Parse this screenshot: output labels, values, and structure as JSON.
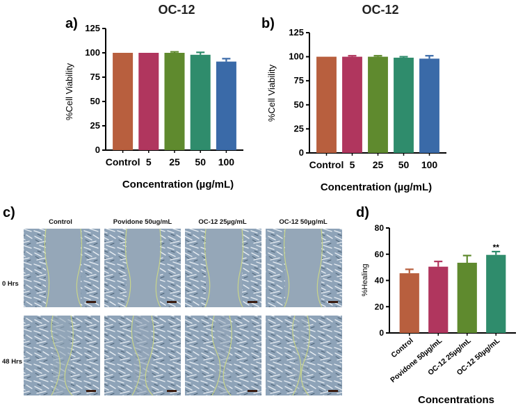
{
  "colors": {
    "control": "#b85f3e",
    "c5": "#b0365e",
    "c25": "#5f8a2e",
    "c50": "#2f8c6c",
    "c100": "#3a6aa8",
    "povidone": "#b0365e",
    "oc25": "#5f8a2e",
    "oc50": "#2f8c6c"
  },
  "panel_labels": [
    "a)",
    "b)",
    "c)",
    "d)"
  ],
  "images": {
    "column_headers": [
      "Control",
      "Povidone 50ug/mL",
      "OC-12 25µg/mL",
      "OC-12 50µg/mL"
    ],
    "row_labels": [
      "0 Hrs",
      "48 Hrs"
    ]
  },
  "chart_data": [
    {
      "id": "a",
      "type": "bar",
      "title": "OC-12",
      "categories": [
        "Control",
        "5",
        "25",
        "50",
        "100"
      ],
      "values": [
        100,
        100,
        100,
        98,
        91
      ],
      "errors": [
        0,
        0,
        1,
        2.5,
        3
      ],
      "ylabel": "%Cell Viability",
      "xlabel": "Concentration (µg/mL)",
      "ylim": [
        0,
        125
      ],
      "yticks": [
        "0",
        "25",
        "50",
        "75",
        "100",
        "125"
      ]
    },
    {
      "id": "b",
      "type": "bar",
      "title": "OC-12",
      "categories": [
        "Control",
        "5",
        "25",
        "50",
        "100"
      ],
      "values": [
        100,
        100,
        100,
        99,
        98
      ],
      "errors": [
        0,
        1,
        1,
        1,
        3
      ],
      "ylabel": "%Cell Viability",
      "xlabel": "Concentration (µg/mL)",
      "ylim": [
        0,
        125
      ],
      "yticks": [
        "0",
        "25",
        "50",
        "75",
        "100",
        "125"
      ]
    },
    {
      "id": "d",
      "type": "bar",
      "title": "",
      "categories": [
        "Control",
        "Povidone 50µg/mL",
        "OC-12 25µg/mL",
        "OC-12 50µg/mL"
      ],
      "values": [
        45.5,
        50.5,
        53.5,
        59.5
      ],
      "errors": [
        3,
        4,
        5.5,
        2.5
      ],
      "annotations": [
        "",
        "",
        "",
        "**"
      ],
      "ylabel": "%Healing",
      "xlabel": "Concentrations",
      "ylim": [
        0,
        80
      ],
      "yticks": [
        "0",
        "20",
        "40",
        "60",
        "80"
      ]
    }
  ]
}
